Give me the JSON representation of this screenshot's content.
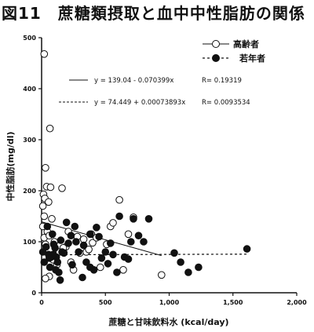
{
  "figure": {
    "title": "図11　蔗糖類摂取と血中中性脂肪の関係"
  },
  "chart_data": {
    "type": "scatter",
    "title": "図11　蔗糖類摂取と血中中性脂肪の関係",
    "xlabel": "蔗糖と甘味飲料水 (kcal/day)",
    "ylabel": "中性脂肪(mg/dl)",
    "xlim": [
      0,
      2000
    ],
    "ylim": [
      0,
      500
    ],
    "xticks": [
      0,
      500,
      1000,
      1500,
      2000
    ],
    "xtick_labels": [
      "0",
      "500",
      "1,000",
      "1,500",
      "2,000"
    ],
    "yticks": [
      0,
      100,
      200,
      300,
      400,
      500
    ],
    "ytick_labels": [
      "0",
      "100",
      "200",
      "300",
      "400",
      "500"
    ],
    "grid": false,
    "legend_position": "top-right",
    "series": [
      {
        "name": "高齢者",
        "marker": "open-circle",
        "color": "#111111",
        "points": [
          [
            20,
            468
          ],
          [
            65,
            322
          ],
          [
            30,
            245
          ],
          [
            40,
            208
          ],
          [
            70,
            207
          ],
          [
            15,
            193
          ],
          [
            25,
            185
          ],
          [
            55,
            178
          ],
          [
            160,
            205
          ],
          [
            10,
            170
          ],
          [
            20,
            150
          ],
          [
            80,
            145
          ],
          [
            10,
            130
          ],
          [
            45,
            120
          ],
          [
            20,
            108
          ],
          [
            30,
            95
          ],
          [
            60,
            112
          ],
          [
            100,
            100
          ],
          [
            140,
            80
          ],
          [
            190,
            90
          ],
          [
            230,
            60
          ],
          [
            250,
            45
          ],
          [
            120,
            55
          ],
          [
            60,
            32
          ],
          [
            30,
            28
          ],
          [
            90,
            65
          ],
          [
            280,
            110
          ],
          [
            330,
            105
          ],
          [
            350,
            80
          ],
          [
            390,
            115
          ],
          [
            400,
            98
          ],
          [
            430,
            108
          ],
          [
            460,
            50
          ],
          [
            510,
            95
          ],
          [
            540,
            130
          ],
          [
            560,
            137
          ],
          [
            610,
            182
          ],
          [
            640,
            45
          ],
          [
            680,
            115
          ],
          [
            720,
            148
          ],
          [
            940,
            35
          ],
          [
            300,
            78
          ],
          [
            170,
            88
          ],
          [
            210,
            120
          ],
          [
            370,
            85
          ]
        ]
      },
      {
        "name": "若年者",
        "marker": "filled-circle",
        "color": "#111111",
        "points": [
          [
            10,
            80
          ],
          [
            20,
            60
          ],
          [
            35,
            90
          ],
          [
            45,
            130
          ],
          [
            55,
            75
          ],
          [
            65,
            50
          ],
          [
            75,
            70
          ],
          [
            85,
            115
          ],
          [
            95,
            95
          ],
          [
            105,
            88
          ],
          [
            115,
            70
          ],
          [
            125,
            60
          ],
          [
            135,
            40
          ],
          [
            145,
            25
          ],
          [
            160,
            80
          ],
          [
            175,
            78
          ],
          [
            195,
            138
          ],
          [
            210,
            97
          ],
          [
            230,
            112
          ],
          [
            260,
            130
          ],
          [
            270,
            100
          ],
          [
            290,
            80
          ],
          [
            320,
            30
          ],
          [
            350,
            60
          ],
          [
            380,
            50
          ],
          [
            410,
            45
          ],
          [
            430,
            128
          ],
          [
            470,
            68
          ],
          [
            500,
            80
          ],
          [
            540,
            97
          ],
          [
            560,
            75
          ],
          [
            590,
            40
          ],
          [
            610,
            150
          ],
          [
            650,
            70
          ],
          [
            700,
            100
          ],
          [
            760,
            112
          ],
          [
            800,
            100
          ],
          [
            1040,
            78
          ],
          [
            1090,
            60
          ],
          [
            1150,
            40
          ],
          [
            1230,
            50
          ],
          [
            1610,
            86
          ],
          [
            90,
            75
          ],
          [
            150,
            103
          ],
          [
            240,
            55
          ],
          [
            330,
            93
          ],
          [
            380,
            115
          ],
          [
            450,
            110
          ],
          [
            520,
            57
          ],
          [
            680,
            66
          ],
          [
            720,
            145
          ],
          [
            840,
            145
          ],
          [
            60,
            68
          ],
          [
            110,
            45
          ]
        ]
      }
    ],
    "regression_lines": [
      {
        "series": "高齢者",
        "style": "solid",
        "equation": "y = 139.04 - 0.070399x",
        "r_label": "R= 0.19319",
        "intercept": 139.04,
        "slope": -0.070399,
        "x_range": [
          0,
          940
        ]
      },
      {
        "series": "若年者",
        "style": "dashed",
        "equation": "y = 74.449 + 0.00073893x",
        "r_label": "R= 0.0093534",
        "intercept": 74.449,
        "slope": 0.00073893,
        "x_range": [
          0,
          1610
        ]
      }
    ]
  }
}
